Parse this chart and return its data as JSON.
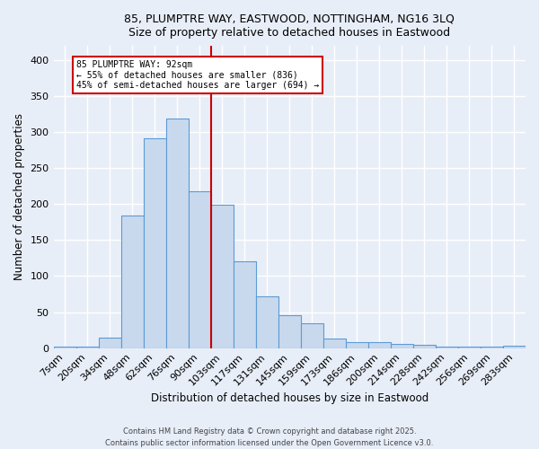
{
  "title_line1": "85, PLUMPTRE WAY, EASTWOOD, NOTTINGHAM, NG16 3LQ",
  "title_line2": "Size of property relative to detached houses in Eastwood",
  "xlabel": "Distribution of detached houses by size in Eastwood",
  "ylabel": "Number of detached properties",
  "footer_line1": "Contains HM Land Registry data © Crown copyright and database right 2025.",
  "footer_line2": "Contains public sector information licensed under the Open Government Licence v3.0.",
  "categories": [
    "7sqm",
    "20sqm",
    "34sqm",
    "48sqm",
    "62sqm",
    "76sqm",
    "90sqm",
    "103sqm",
    "117sqm",
    "131sqm",
    "145sqm",
    "159sqm",
    "173sqm",
    "186sqm",
    "200sqm",
    "214sqm",
    "228sqm",
    "242sqm",
    "256sqm",
    "269sqm",
    "283sqm"
  ],
  "values": [
    2,
    2,
    15,
    184,
    291,
    319,
    218,
    199,
    121,
    72,
    46,
    34,
    13,
    8,
    8,
    6,
    4,
    2,
    2,
    2,
    3
  ],
  "bar_facecolor": "#c9d9ed",
  "bar_edgecolor": "#5b9bd5",
  "background_color": "#e8eef8",
  "grid_color": "#ffffff",
  "redline_bin_index": 6,
  "annotation_text_line1": "85 PLUMPTRE WAY: 92sqm",
  "annotation_text_line2": "← 55% of detached houses are smaller (836)",
  "annotation_text_line3": "45% of semi-detached houses are larger (694) →",
  "annotation_box_edgecolor": "#cc0000",
  "annotation_box_facecolor": "#ffffff",
  "redline_color": "#cc0000",
  "ylim": [
    0,
    420
  ],
  "yticks": [
    0,
    50,
    100,
    150,
    200,
    250,
    300,
    350,
    400
  ]
}
